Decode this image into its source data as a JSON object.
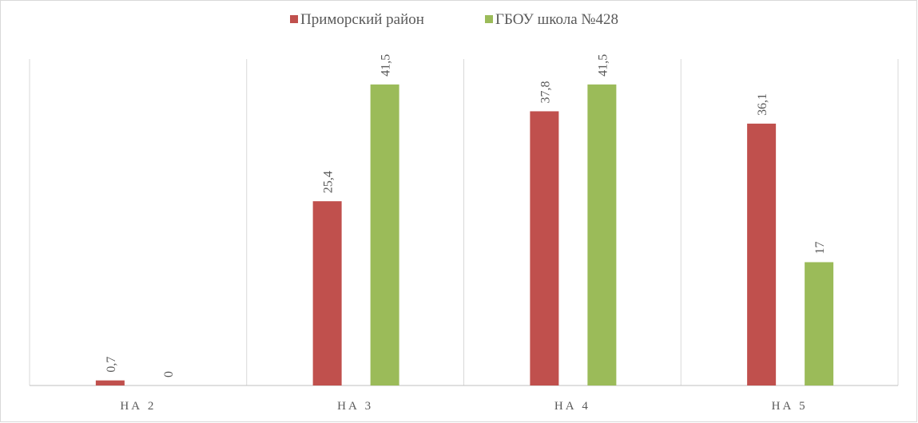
{
  "chart_data": {
    "type": "bar",
    "categories": [
      "НА 2",
      "НА 3",
      "НА 4",
      "НА 5"
    ],
    "series": [
      {
        "name": "Приморский район",
        "color": "#c0504d",
        "values": [
          0.7,
          25.4,
          37.8,
          36.1
        ],
        "value_labels": [
          "0,7",
          "25,4",
          "37,8",
          "36,1"
        ]
      },
      {
        "name": "ГБОУ школа №428",
        "color": "#9bbb59",
        "values": [
          0,
          41.5,
          41.5,
          17
        ],
        "value_labels": [
          "0",
          "41,5",
          "41,5",
          "17"
        ]
      }
    ],
    "ylim": [
      0,
      45
    ],
    "legend": "top"
  }
}
